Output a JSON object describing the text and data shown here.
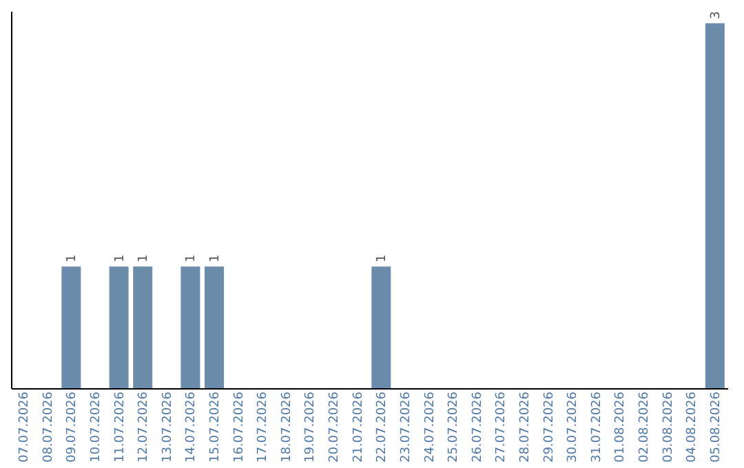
{
  "chart_data": {
    "type": "bar",
    "categories": [
      "07.07.2026",
      "08.07.2026",
      "09.07.2026",
      "10.07.2026",
      "11.07.2026",
      "12.07.2026",
      "13.07.2026",
      "14.07.2026",
      "15.07.2026",
      "16.07.2026",
      "17.07.2026",
      "18.07.2026",
      "19.07.2026",
      "20.07.2026",
      "21.07.2026",
      "22.07.2026",
      "23.07.2026",
      "24.07.2026",
      "25.07.2026",
      "26.07.2026",
      "27.07.2026",
      "28.07.2026",
      "29.07.2026",
      "30.07.2026",
      "31.07.2026",
      "01.08.2026",
      "02.08.2026",
      "03.08.2026",
      "04.08.2026",
      "05.08.2026"
    ],
    "values": [
      0,
      0,
      1,
      0,
      1,
      1,
      0,
      1,
      1,
      0,
      0,
      0,
      0,
      0,
      0,
      1,
      0,
      0,
      0,
      0,
      0,
      0,
      0,
      0,
      0,
      0,
      0,
      0,
      0,
      3
    ],
    "value_labels": [
      null,
      null,
      "1",
      null,
      "1",
      "1",
      null,
      "1",
      "1",
      null,
      null,
      null,
      null,
      null,
      null,
      "1",
      null,
      null,
      null,
      null,
      null,
      null,
      null,
      null,
      null,
      null,
      null,
      null,
      null,
      "3"
    ],
    "color": "#6b8cab",
    "ylim": [
      0,
      3.1
    ],
    "tick_labels": "x",
    "grid": false
  }
}
